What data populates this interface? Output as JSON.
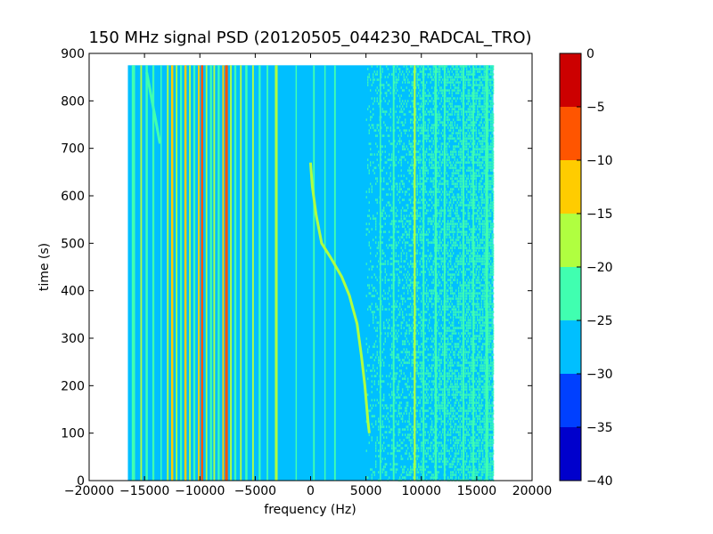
{
  "chart_data": {
    "type": "heatmap",
    "title": "150 MHz signal PSD (20120505_044230_RADCAL_TRO)",
    "xlabel": "frequency (Hz)",
    "ylabel": "time (s)",
    "xlim": [
      -20000,
      20000
    ],
    "ylim": [
      0,
      900
    ],
    "x_ticks": [
      -20000,
      -15000,
      -10000,
      -5000,
      0,
      5000,
      10000,
      15000,
      20000
    ],
    "y_ticks": [
      0,
      100,
      200,
      300,
      400,
      500,
      600,
      700,
      800,
      900
    ],
    "data_extent": {
      "x": [
        -16500,
        16500
      ],
      "y": [
        0,
        875
      ]
    },
    "grid": false,
    "colorbar": {
      "min": -40,
      "max": 0,
      "ticks": [
        0,
        -5,
        -10,
        -15,
        -20,
        -25,
        -30,
        -35,
        -40
      ],
      "levels": [
        {
          "from": -40,
          "to": -35,
          "color": "#0000cc"
        },
        {
          "from": -35,
          "to": -30,
          "color": "#0040ff"
        },
        {
          "from": -30,
          "to": -25,
          "color": "#00bfff"
        },
        {
          "from": -25,
          "to": -20,
          "color": "#40ffb0"
        },
        {
          "from": -20,
          "to": -15,
          "color": "#b0ff40"
        },
        {
          "from": -15,
          "to": -10,
          "color": "#ffcc00"
        },
        {
          "from": -10,
          "to": -5,
          "color": "#ff5500"
        },
        {
          "from": -5,
          "to": 0,
          "color": "#cc0000"
        }
      ]
    },
    "background_level": -27.5,
    "vertical_lines": [
      {
        "x": -16000,
        "width": 300,
        "level": -22.5
      },
      {
        "x": -15300,
        "width": 150,
        "level": -17.5
      },
      {
        "x": -14800,
        "width": 200,
        "level": -22.5
      },
      {
        "x": -14200,
        "width": 180,
        "level": -22.5
      },
      {
        "x": -13500,
        "width": 120,
        "level": -22.5
      },
      {
        "x": -12900,
        "width": 150,
        "level": -17.5
      },
      {
        "x": -12500,
        "width": 200,
        "level": -12.5
      },
      {
        "x": -12100,
        "width": 150,
        "level": -17.5
      },
      {
        "x": -11700,
        "width": 180,
        "level": -22.5
      },
      {
        "x": -11300,
        "width": 200,
        "level": -12.5
      },
      {
        "x": -10900,
        "width": 150,
        "level": -17.5
      },
      {
        "x": -10500,
        "width": 180,
        "level": -22.5
      },
      {
        "x": -10100,
        "width": 150,
        "level": -12.5
      },
      {
        "x": -9800,
        "width": 200,
        "level": -7.5
      },
      {
        "x": -9400,
        "width": 150,
        "level": -17.5
      },
      {
        "x": -9000,
        "width": 180,
        "level": -22.5
      },
      {
        "x": -8700,
        "width": 150,
        "level": -17.5
      },
      {
        "x": -8300,
        "width": 180,
        "level": -22.5
      },
      {
        "x": -7900,
        "width": 150,
        "level": -12.5
      },
      {
        "x": -7600,
        "width": 250,
        "level": -7.5
      },
      {
        "x": -7200,
        "width": 150,
        "level": -17.5
      },
      {
        "x": -6800,
        "width": 180,
        "level": -22.5
      },
      {
        "x": -6300,
        "width": 150,
        "level": -17.5
      },
      {
        "x": -5800,
        "width": 200,
        "level": -22.5
      },
      {
        "x": -5200,
        "width": 150,
        "level": -17.5
      },
      {
        "x": -4600,
        "width": 180,
        "level": -22.5
      },
      {
        "x": -3900,
        "width": 150,
        "level": -22.5
      },
      {
        "x": -3100,
        "width": 250,
        "level": -17.5
      },
      {
        "x": -1300,
        "width": 120,
        "level": -22.5
      },
      {
        "x": 300,
        "width": 150,
        "level": -22.5
      },
      {
        "x": 1300,
        "width": 120,
        "level": -22.5
      },
      {
        "x": 2200,
        "width": 150,
        "level": -22.5
      },
      {
        "x": 6300,
        "width": 120,
        "level": -22.5
      },
      {
        "x": 7500,
        "width": 150,
        "level": -22.5
      },
      {
        "x": 9400,
        "width": 180,
        "level": -17.5
      },
      {
        "x": 10200,
        "width": 150,
        "level": -22.5
      },
      {
        "x": 11300,
        "width": 200,
        "level": -22.5
      },
      {
        "x": 12100,
        "width": 150,
        "level": -22.5
      },
      {
        "x": 13800,
        "width": 150,
        "level": -22.5
      },
      {
        "x": 14700,
        "width": 150,
        "level": -22.5
      },
      {
        "x": 15900,
        "width": 250,
        "level": -22.5
      }
    ],
    "noise_band": {
      "x": [
        5000,
        16500
      ],
      "level": -22.5
    },
    "drift_traces": [
      {
        "level": -17.5,
        "points": [
          [
            -10,
            670
          ],
          [
            150,
            620
          ],
          [
            500,
            560
          ],
          [
            1000,
            500
          ],
          [
            1800,
            470
          ],
          [
            2800,
            430
          ],
          [
            3500,
            390
          ],
          [
            4200,
            330
          ],
          [
            4600,
            260
          ],
          [
            4900,
            200
          ],
          [
            5200,
            120
          ],
          [
            5300,
            100
          ]
        ]
      },
      {
        "level": -22.5,
        "points": [
          [
            -14800,
            860
          ],
          [
            -14400,
            810
          ],
          [
            -14000,
            760
          ],
          [
            -13600,
            710
          ]
        ]
      }
    ]
  }
}
